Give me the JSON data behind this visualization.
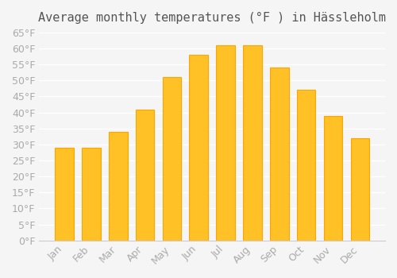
{
  "title": "Average monthly temperatures (°F ) in Hässleholm",
  "months": [
    "Jan",
    "Feb",
    "Mar",
    "Apr",
    "May",
    "Jun",
    "Jul",
    "Aug",
    "Sep",
    "Oct",
    "Nov",
    "Dec"
  ],
  "values": [
    29,
    29,
    34,
    41,
    51,
    58,
    61,
    61,
    54,
    47,
    39,
    32
  ],
  "bar_color_face": "#FFC125",
  "bar_color_edge": "#FFA500",
  "background_color": "#F5F5F5",
  "grid_color": "#FFFFFF",
  "ylim": [
    0,
    65
  ],
  "yticks": [
    0,
    5,
    10,
    15,
    20,
    25,
    30,
    35,
    40,
    45,
    50,
    55,
    60,
    65
  ],
  "ylabel_suffix": "°F",
  "title_fontsize": 11,
  "tick_fontsize": 9,
  "tick_color": "#AAAAAA"
}
